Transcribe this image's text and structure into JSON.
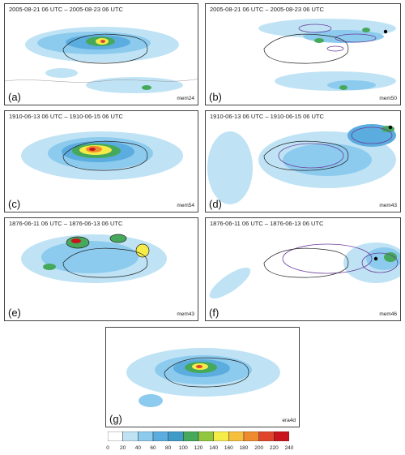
{
  "panels": [
    {
      "id": "a",
      "label": "(a)",
      "period": "2005-08-21 06 UTC – 2005-08-23 06 UTC",
      "member": "mem24"
    },
    {
      "id": "b",
      "label": "(b)",
      "period": "2005-08-21 06 UTC – 2005-08-23 06 UTC",
      "member": "mem50"
    },
    {
      "id": "c",
      "label": "(c)",
      "period": "1910-06-13 06 UTC – 1910-06-15 06 UTC",
      "member": "mem54"
    },
    {
      "id": "d",
      "label": "(d)",
      "period": "1910-06-13 06 UTC – 1910-06-15 06 UTC",
      "member": "mem43"
    },
    {
      "id": "e",
      "label": "(e)",
      "period": "1876-06-11 06 UTC – 1876-06-13 06 UTC",
      "member": "mem43"
    },
    {
      "id": "f",
      "label": "(f)",
      "period": "1876-06-11 06 UTC – 1876-06-13 06 UTC",
      "member": "mem46"
    },
    {
      "id": "g",
      "label": "(g)",
      "period": "",
      "member": "era4d"
    }
  ],
  "colorbar": {
    "ticks": [
      "0",
      "20",
      "40",
      "60",
      "80",
      "100",
      "120",
      "140",
      "160",
      "180",
      "200",
      "220",
      "240"
    ],
    "colors": [
      "#ffffff",
      "#bfe3f5",
      "#8ccbee",
      "#5bade0",
      "#3f9bc8",
      "#46a85a",
      "#92c63f",
      "#f5ec4a",
      "#f6bf3d",
      "#ef8b2e",
      "#e0452a",
      "#c8141c"
    ]
  },
  "outline_colors": {
    "contour": "#6a3d9a",
    "marker": "#000000"
  }
}
